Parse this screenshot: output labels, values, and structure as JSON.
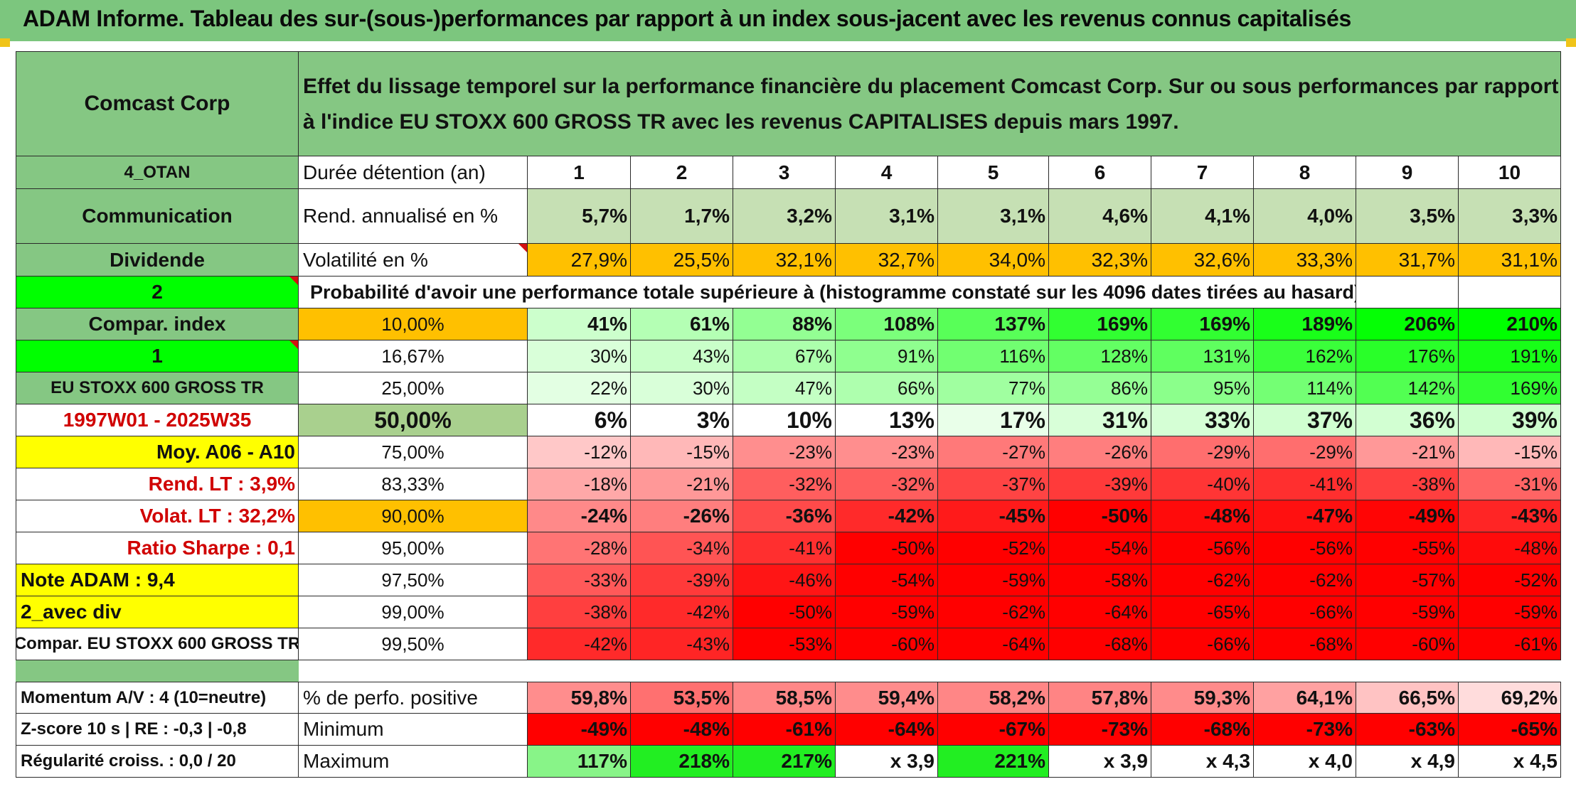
{
  "title": "ADAM Informe. Tableau des sur-(sous-)performances par rapport à un index sous-jacent avec les revenus connus capitalisés",
  "header": {
    "company": "Comcast Corp",
    "description": "Effet du lissage temporel sur la performance financière du placement Comcast Corp. Sur ou sous performances par rapport à l'indice EU STOXX 600 GROSS TR avec les revenus CAPITALISES depuis mars 1997."
  },
  "left": {
    "code": "4_OTAN",
    "sector": "Communication",
    "dividend_label": "Dividende",
    "two": "2",
    "compar_index": "Compar. index",
    "one": "1",
    "index_name": "EU STOXX 600 GROSS TR",
    "period": "1997W01 - 2025W35",
    "moy": "Moy. A06 - A10",
    "rend_lt": "Rend. LT :   3,9%",
    "volat_lt": "Volat. LT :   32,2%",
    "ratio_sharpe": "Ratio Sharpe :   0,1",
    "note_adam": "Note ADAM : 9,4",
    "avec_div": "2_avec div",
    "compar_full": "Compar. EU STOXX 600 GROSS TR",
    "momentum": "Momentum A/V : 4 (10=neutre)",
    "zscore": "Z-score 10 s | RE : -0,3 | -0,8",
    "regularite": "Régularité croiss. : 0,0 / 20"
  },
  "labels": {
    "duree": "Durée détention (an)",
    "rend": "Rend. annualisé en %",
    "volat": "Volatilité en %",
    "proba": "Probabilité d'avoir une performance totale supérieure à (histogramme constaté sur les 4096 dates tirées au hasard)",
    "positive": "% de perfo. positive",
    "minimum": "Minimum",
    "maximum": "Maximum"
  },
  "years": [
    "1",
    "2",
    "3",
    "4",
    "5",
    "6",
    "7",
    "8",
    "9",
    "10"
  ],
  "rend": [
    "5,7%",
    "1,7%",
    "3,2%",
    "3,1%",
    "3,1%",
    "4,6%",
    "4,1%",
    "4,0%",
    "3,5%",
    "3,3%"
  ],
  "volat": [
    "27,9%",
    "25,5%",
    "32,1%",
    "32,7%",
    "34,0%",
    "32,3%",
    "32,6%",
    "33,3%",
    "31,7%",
    "31,1%"
  ],
  "prob_rows": [
    {
      "pct": "10,00%",
      "values": [
        "41%",
        "61%",
        "88%",
        "108%",
        "137%",
        "169%",
        "169%",
        "189%",
        "206%",
        "210%"
      ]
    },
    {
      "pct": "16,67%",
      "values": [
        "30%",
        "43%",
        "67%",
        "91%",
        "116%",
        "128%",
        "131%",
        "162%",
        "176%",
        "191%"
      ]
    },
    {
      "pct": "25,00%",
      "values": [
        "22%",
        "30%",
        "47%",
        "66%",
        "77%",
        "86%",
        "95%",
        "114%",
        "142%",
        "169%"
      ]
    },
    {
      "pct": "50,00%",
      "values": [
        "6%",
        "3%",
        "10%",
        "13%",
        "17%",
        "31%",
        "33%",
        "37%",
        "36%",
        "39%"
      ]
    },
    {
      "pct": "75,00%",
      "values": [
        "-12%",
        "-15%",
        "-23%",
        "-23%",
        "-27%",
        "-26%",
        "-29%",
        "-29%",
        "-21%",
        "-15%"
      ]
    },
    {
      "pct": "83,33%",
      "values": [
        "-18%",
        "-21%",
        "-32%",
        "-32%",
        "-37%",
        "-39%",
        "-40%",
        "-41%",
        "-38%",
        "-31%"
      ]
    },
    {
      "pct": "90,00%",
      "values": [
        "-24%",
        "-26%",
        "-36%",
        "-42%",
        "-45%",
        "-50%",
        "-48%",
        "-47%",
        "-49%",
        "-43%"
      ]
    },
    {
      "pct": "95,00%",
      "values": [
        "-28%",
        "-34%",
        "-41%",
        "-50%",
        "-52%",
        "-54%",
        "-56%",
        "-56%",
        "-55%",
        "-48%"
      ]
    },
    {
      "pct": "97,50%",
      "values": [
        "-33%",
        "-39%",
        "-46%",
        "-54%",
        "-59%",
        "-58%",
        "-62%",
        "-62%",
        "-57%",
        "-52%"
      ]
    },
    {
      "pct": "99,00%",
      "values": [
        "-38%",
        "-42%",
        "-50%",
        "-59%",
        "-62%",
        "-64%",
        "-65%",
        "-66%",
        "-59%",
        "-59%"
      ]
    },
    {
      "pct": "99,50%",
      "values": [
        "-42%",
        "-43%",
        "-53%",
        "-60%",
        "-64%",
        "-68%",
        "-66%",
        "-68%",
        "-60%",
        "-61%"
      ]
    }
  ],
  "positive": [
    "59,8%",
    "53,5%",
    "58,5%",
    "59,4%",
    "58,2%",
    "57,8%",
    "59,3%",
    "64,1%",
    "66,5%",
    "69,2%"
  ],
  "minimum": [
    "-49%",
    "-48%",
    "-61%",
    "-64%",
    "-67%",
    "-73%",
    "-68%",
    "-73%",
    "-63%",
    "-65%"
  ],
  "maximum": [
    "117%",
    "218%",
    "217%",
    "x 3,9",
    "221%",
    "x 3,9",
    "x 4,3",
    "x 4,0",
    "x 4,9",
    "x 4,5"
  ],
  "colors": {
    "header_green": "#7cc67e",
    "bright_green": "#00ff00",
    "yellow": "#ffff00",
    "orange": "#ffc000",
    "red_text": "#d00000"
  }
}
